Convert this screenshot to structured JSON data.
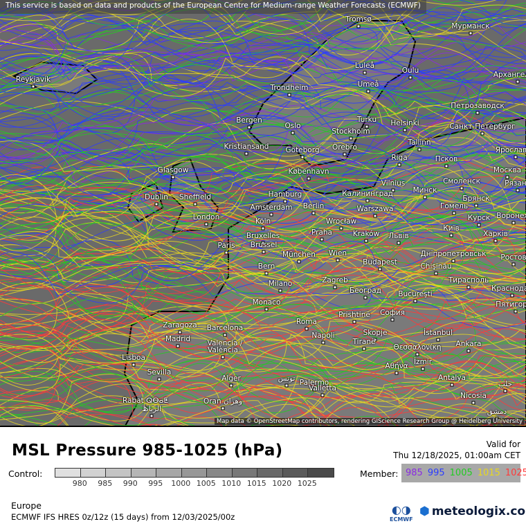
{
  "map": {
    "notice": "This service is based on data and products of the European Centre for Medium-range Weather Forecasts (ECMWF)",
    "attribution": "Map data © OpenStreetMap contributors, rendering GIScience Research Group @ Heidelberg University",
    "cities": [
      "Tromsø",
      "Мурманск",
      "Reykjavík",
      "Luleå",
      "Oulu",
      "Архангельск",
      "Trondheim",
      "Umeå",
      "Петрозаводск",
      "Bergen",
      "Oslo",
      "Turku",
      "Helsinki",
      "Санкт-Петербург",
      "Stockholm",
      "Kristiansand",
      "Göteborg",
      "Örebro",
      "Tallinn",
      "Ярославль",
      "Glasgow",
      "Riga",
      "Псков",
      "Москва",
      "København",
      "Vilnius",
      "Минск",
      "Смоленск",
      "Рязань",
      "Dublin",
      "Sheffield",
      "Hamburg",
      "Калининград",
      "Брянск",
      "Berlin",
      "Amsterdam",
      "Warszawa",
      "Гомель",
      "London",
      "Köln",
      "Wrocław",
      "Курск",
      "Воронеж",
      "Київ",
      "Bruxelles",
      "Brussel",
      "Praha",
      "Kraków",
      "Львів",
      "Харків",
      "Paris",
      "Дніпропетровськ",
      "Ростов",
      "Wien",
      "München",
      "Budapest",
      "Chişinău",
      "Bern",
      "Тирасполь",
      "Краснодар",
      "Milano",
      "Zagreb",
      "Београд",
      "Bucureşti",
      "Пятигорск",
      "Monaco",
      "Prishtinë",
      "София",
      "Roma",
      "Skopje",
      "İstanbul",
      "Zaragoza",
      "Barcelona",
      "Madrid",
      "Napoli",
      "Tiranë",
      "Θεσσαλονίκη",
      "Ankara",
      "Valencia /",
      "València",
      "Lisboa",
      "Αθήνα",
      "İzmir",
      "Sevilla",
      "Palermo",
      "تونس",
      "Alger",
      "Antalya",
      "حلب",
      "Valletta",
      "Nicosia",
      "Rabat ⵕⴱⴰⵟ",
      "الرباط",
      "Oran وهران",
      "دمشق"
    ]
  },
  "legend": {
    "title": "MSL Pressure 985-1025 (hPa)",
    "valid_label": "Valid for",
    "valid_time": "Thu 12/18/2025, 01:00am CET",
    "control_label": "Control:",
    "control_colors": [
      "#e0e0e0",
      "#d2d2d2",
      "#c4c4c4",
      "#b5b5b5",
      "#a6a6a6",
      "#979797",
      "#888888",
      "#787878",
      "#696969",
      "#5a5a5a",
      "#4a4a4a"
    ],
    "control_ticks": [
      "980",
      "985",
      "990",
      "995",
      "1000",
      "1005",
      "1010",
      "1015",
      "1020",
      "1025"
    ],
    "member_label": "Member:",
    "members": [
      {
        "v": "985",
        "color": "#8a2be2"
      },
      {
        "v": "995",
        "color": "#2b3cff"
      },
      {
        "v": "1005",
        "color": "#22cc22"
      },
      {
        "v": "1015",
        "color": "#e8d820"
      },
      {
        "v": "1025",
        "color": "#ff3a3a"
      }
    ],
    "region": "Europe",
    "model": "ECMWF IFS HRES 0z/12z (15 days) from  12/03/2025/00z",
    "ecmwf_logo": "ECMWF",
    "brand": "meteologix.com"
  }
}
